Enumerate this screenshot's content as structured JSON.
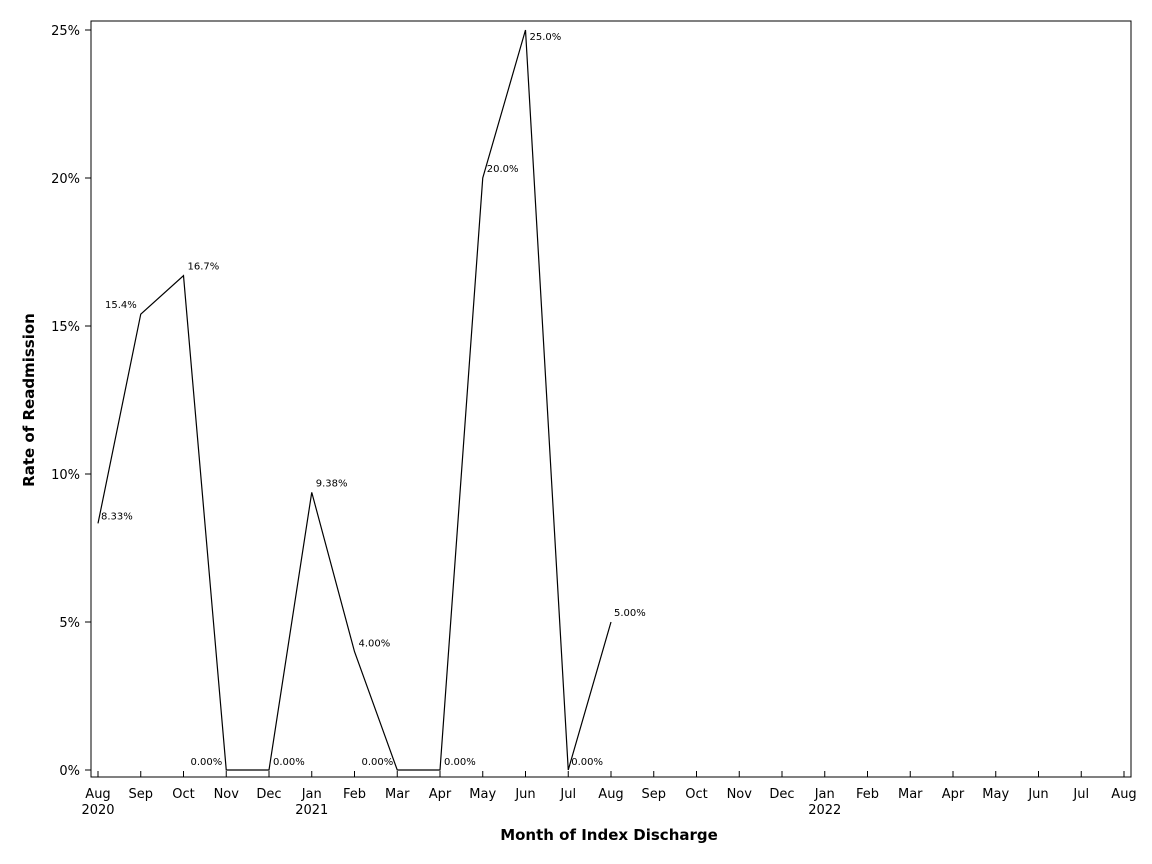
{
  "chart_data": {
    "type": "line",
    "title": "",
    "xlabel": "Month of Index Discharge",
    "ylabel": "Rate of Readmission",
    "ylim": [
      0,
      25
    ],
    "y_ticks": [
      {
        "value": 0,
        "label": "0%"
      },
      {
        "value": 5,
        "label": "5%"
      },
      {
        "value": 10,
        "label": "10%"
      },
      {
        "value": 15,
        "label": "15%"
      },
      {
        "value": 20,
        "label": "20%"
      },
      {
        "value": 25,
        "label": "25%"
      }
    ],
    "x_ticks": [
      {
        "label": "Aug",
        "year": "2020"
      },
      {
        "label": "Sep",
        "year": ""
      },
      {
        "label": "Oct",
        "year": ""
      },
      {
        "label": "Nov",
        "year": ""
      },
      {
        "label": "Dec",
        "year": ""
      },
      {
        "label": "Jan",
        "year": "2021"
      },
      {
        "label": "Feb",
        "year": ""
      },
      {
        "label": "Mar",
        "year": ""
      },
      {
        "label": "Apr",
        "year": ""
      },
      {
        "label": "May",
        "year": ""
      },
      {
        "label": "Jun",
        "year": ""
      },
      {
        "label": "Jul",
        "year": ""
      },
      {
        "label": "Aug",
        "year": ""
      },
      {
        "label": "Sep",
        "year": ""
      },
      {
        "label": "Oct",
        "year": ""
      },
      {
        "label": "Nov",
        "year": ""
      },
      {
        "label": "Dec",
        "year": ""
      },
      {
        "label": "Jan",
        "year": "2022"
      },
      {
        "label": "Feb",
        "year": ""
      },
      {
        "label": "Mar",
        "year": ""
      },
      {
        "label": "Apr",
        "year": ""
      },
      {
        "label": "May",
        "year": ""
      },
      {
        "label": "Jun",
        "year": ""
      },
      {
        "label": "Jul",
        "year": ""
      },
      {
        "label": "Aug",
        "year": ""
      }
    ],
    "series": [
      {
        "points": [
          {
            "x": "2020-08",
            "y": 8.33,
            "label": "8.33%"
          },
          {
            "x": "2020-09",
            "y": 15.4,
            "label": "15.4%"
          },
          {
            "x": "2020-10",
            "y": 16.7,
            "label": "16.7%"
          },
          {
            "x": "2020-11",
            "y": 0,
            "label": "0.00%"
          },
          {
            "x": "2020-12",
            "y": 0,
            "label": "0.00%"
          },
          {
            "x": "2021-01",
            "y": 9.38,
            "label": "9.38%"
          },
          {
            "x": "2021-02",
            "y": 4.0,
            "label": "4.00%"
          },
          {
            "x": "2021-03",
            "y": 0,
            "label": "0.00%"
          },
          {
            "x": "2021-04",
            "y": 0,
            "label": "0.00%"
          },
          {
            "x": "2021-05",
            "y": 20.0,
            "label": "20.0%"
          },
          {
            "x": "2021-06",
            "y": 25.0,
            "label": "25.0%"
          },
          {
            "x": "2021-07",
            "y": 0,
            "label": "0.00%"
          },
          {
            "x": "2021-08",
            "y": 5.0,
            "label": "5.00%"
          }
        ]
      }
    ],
    "grid": false,
    "legend": "none"
  }
}
